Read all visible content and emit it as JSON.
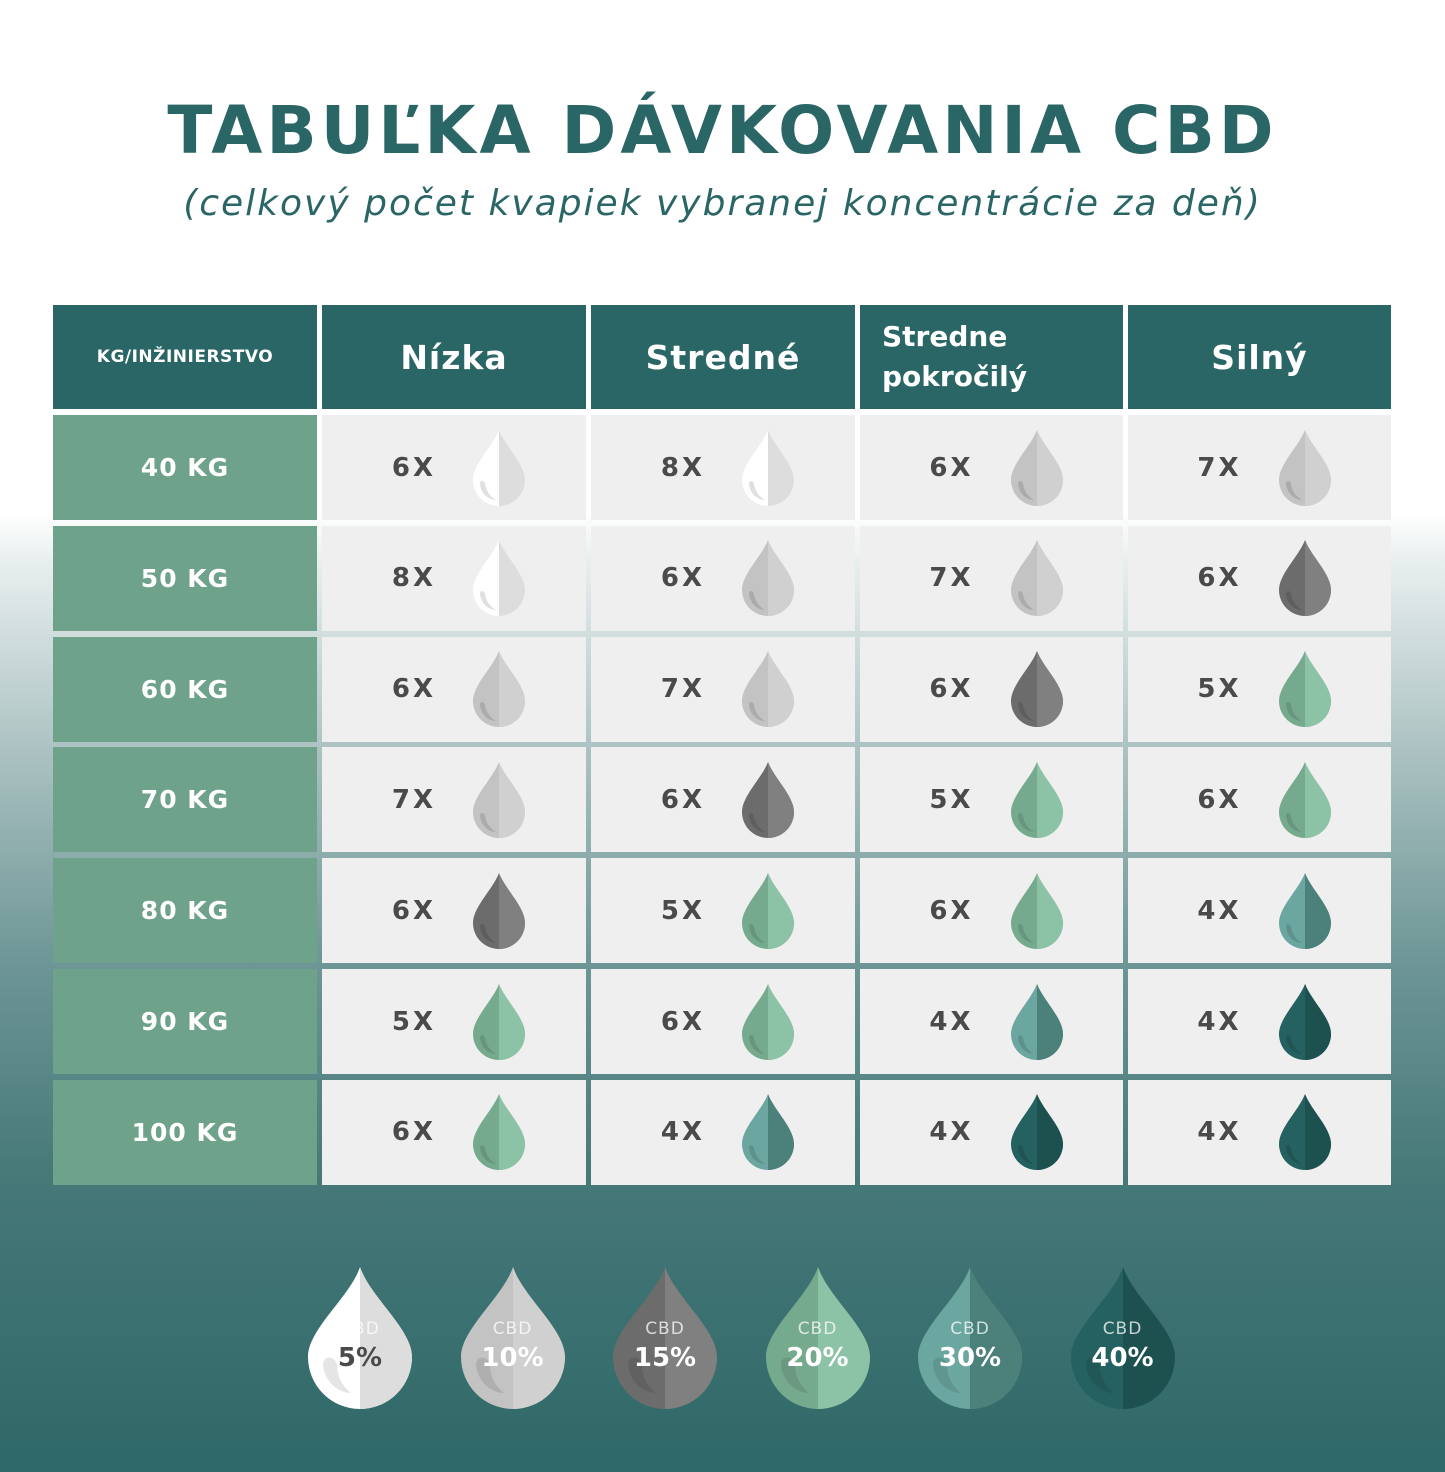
{
  "title": "TABUĽKA DÁVKOVANIA CBD",
  "subtitle": "(celkový počet kvapiek vybranej koncentrácie za deň)",
  "table": {
    "headers": [
      "KG/INŽINIERSTVO",
      "Nízka",
      "Stredné",
      "Stredne pokročilý",
      "Silný"
    ],
    "rows": [
      {
        "label": "40 KG",
        "cells": [
          {
            "count": "6X",
            "conc": "5%"
          },
          {
            "count": "8X",
            "conc": "5%"
          },
          {
            "count": "6X",
            "conc": "10%"
          },
          {
            "count": "7X",
            "conc": "10%"
          }
        ]
      },
      {
        "label": "50 KG",
        "cells": [
          {
            "count": "8X",
            "conc": "5%"
          },
          {
            "count": "6X",
            "conc": "10%"
          },
          {
            "count": "7X",
            "conc": "10%"
          },
          {
            "count": "6X",
            "conc": "15%"
          }
        ]
      },
      {
        "label": "60 KG",
        "cells": [
          {
            "count": "6X",
            "conc": "10%"
          },
          {
            "count": "7X",
            "conc": "10%"
          },
          {
            "count": "6X",
            "conc": "15%"
          },
          {
            "count": "5X",
            "conc": "20%"
          }
        ]
      },
      {
        "label": "70 KG",
        "cells": [
          {
            "count": "7X",
            "conc": "10%"
          },
          {
            "count": "6X",
            "conc": "15%"
          },
          {
            "count": "5X",
            "conc": "20%"
          },
          {
            "count": "6X",
            "conc": "20%"
          }
        ]
      },
      {
        "label": "80 KG",
        "cells": [
          {
            "count": "6X",
            "conc": "15%"
          },
          {
            "count": "5X",
            "conc": "20%"
          },
          {
            "count": "6X",
            "conc": "20%"
          },
          {
            "count": "4X",
            "conc": "30%"
          }
        ]
      },
      {
        "label": "90 KG",
        "cells": [
          {
            "count": "5X",
            "conc": "20%"
          },
          {
            "count": "6X",
            "conc": "20%"
          },
          {
            "count": "4X",
            "conc": "30%"
          },
          {
            "count": "4X",
            "conc": "40%"
          }
        ]
      },
      {
        "label": "100 KG",
        "cells": [
          {
            "count": "6X",
            "conc": "20%"
          },
          {
            "count": "4X",
            "conc": "30%"
          },
          {
            "count": "4X",
            "conc": "40%"
          },
          {
            "count": "4X",
            "conc": "40%"
          }
        ]
      }
    ]
  },
  "legend": [
    {
      "label": "CBD",
      "value": "5%",
      "colors": [
        "#ffffff",
        "#dddddd"
      ],
      "text_color": "#4a4a4a"
    },
    {
      "label": "CBD",
      "value": "10%",
      "colors": [
        "#c3c3c3",
        "#d0d0d0"
      ],
      "text_color": "#ffffff"
    },
    {
      "label": "CBD",
      "value": "15%",
      "colors": [
        "#6c6c6c",
        "#808080"
      ],
      "text_color": "#ffffff"
    },
    {
      "label": "CBD",
      "value": "20%",
      "colors": [
        "#76aa8f",
        "#8cc2a6"
      ],
      "text_color": "#ffffff"
    },
    {
      "label": "CBD",
      "value": "30%",
      "colors": [
        "#6ca6a0",
        "#4b807b"
      ],
      "text_color": "#ffffff"
    },
    {
      "label": "CBD",
      "value": "40%",
      "colors": [
        "#256160",
        "#1d5150"
      ],
      "text_color": "#ffffff"
    }
  ],
  "colors": {
    "header": "#2b6666",
    "row_label": "#6fa28b",
    "cell": "#efefef"
  }
}
